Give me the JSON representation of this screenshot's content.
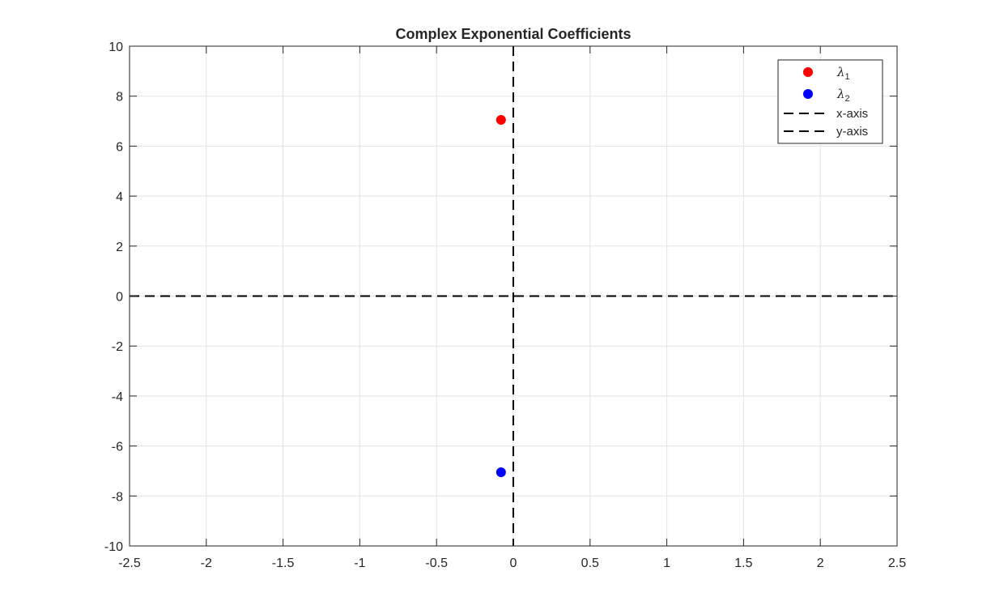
{
  "chart_data": {
    "type": "scatter",
    "title": "Complex Exponential Coefficients",
    "xlabel": "",
    "ylabel": "",
    "xlim": [
      -2.5,
      2.5
    ],
    "ylim": [
      -10,
      10
    ],
    "xticks": [
      -2.5,
      -2,
      -1.5,
      -1,
      -0.5,
      0,
      0.5,
      1,
      1.5,
      2,
      2.5
    ],
    "xtick_labels": [
      "-2.5",
      "-2",
      "-1.5",
      "-1",
      "-0.5",
      "0",
      "0.5",
      "1",
      "1.5",
      "2",
      "2.5"
    ],
    "yticks": [
      -10,
      -8,
      -6,
      -4,
      -2,
      0,
      2,
      4,
      6,
      8,
      10
    ],
    "ytick_labels": [
      "-10",
      "-8",
      "-6",
      "-4",
      "-2",
      "0",
      "2",
      "4",
      "6",
      "8",
      "10"
    ],
    "grid": true,
    "legend_position": "top-right",
    "series": [
      {
        "name": "λ",
        "subscript": "1",
        "kind": "point",
        "color": "#ff0000",
        "points": [
          {
            "x": -0.08,
            "y": 7.05
          }
        ]
      },
      {
        "name": "λ",
        "subscript": "2",
        "kind": "point",
        "color": "#0000ff",
        "points": [
          {
            "x": -0.08,
            "y": -7.05
          }
        ]
      },
      {
        "name": "x-axis",
        "kind": "hline",
        "color": "#000000",
        "y": 0
      },
      {
        "name": "y-axis",
        "kind": "vline",
        "color": "#000000",
        "x": 0
      }
    ]
  }
}
